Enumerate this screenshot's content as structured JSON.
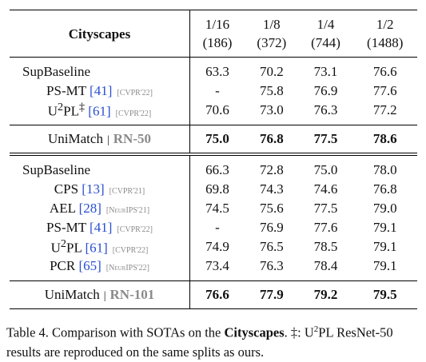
{
  "table": {
    "header": {
      "title": "Cityscapes",
      "columns": [
        {
          "split": "1/16",
          "count": "(186)"
        },
        {
          "split": "1/8",
          "count": "(372)"
        },
        {
          "split": "1/4",
          "count": "(744)"
        },
        {
          "split": "1/2",
          "count": "(1488)"
        }
      ]
    },
    "groups": [
      {
        "rows": [
          {
            "name": "SupBaseline",
            "values": [
              "63.3",
              "70.2",
              "73.1",
              "76.6"
            ]
          },
          {
            "name": "PS-MT",
            "ref": "[41]",
            "venue": "[CVPR'22]",
            "values": [
              "-",
              "75.8",
              "76.9",
              "77.6"
            ]
          },
          {
            "name": "U",
            "sup": "2",
            "name_after": "PL",
            "mark": "‡",
            "ref": "[61]",
            "venue": "[CVPR'22]",
            "values": [
              "70.6",
              "73.0",
              "76.3",
              "77.2"
            ]
          }
        ],
        "total": {
          "name": "UniMatch",
          "separator": "|",
          "backbone": "RN-50",
          "values": [
            "75.0",
            "76.8",
            "77.5",
            "78.6"
          ]
        }
      },
      {
        "rows": [
          {
            "name": "SupBaseline",
            "values": [
              "66.3",
              "72.8",
              "75.0",
              "78.0"
            ]
          },
          {
            "name": "CPS",
            "ref": "[13]",
            "venue": "[CVPR'21]",
            "values": [
              "69.8",
              "74.3",
              "74.6",
              "76.8"
            ]
          },
          {
            "name": "AEL",
            "ref": "[28]",
            "venue": "[NeurIPS'21]",
            "values": [
              "74.5",
              "75.6",
              "77.5",
              "79.0"
            ]
          },
          {
            "name": "PS-MT",
            "ref": "[41]",
            "venue": "[CVPR'22]",
            "values": [
              "-",
              "76.9",
              "77.6",
              "79.1"
            ]
          },
          {
            "name": "U",
            "sup": "2",
            "name_after": "PL",
            "ref": "[61]",
            "venue": "[CVPR'22]",
            "values": [
              "74.9",
              "76.5",
              "78.5",
              "79.1"
            ]
          },
          {
            "name": "PCR",
            "ref": "[65]",
            "venue": "[NeurIPS'22]",
            "values": [
              "73.4",
              "76.3",
              "78.4",
              "79.1"
            ]
          }
        ],
        "total": {
          "name": "UniMatch",
          "separator": "|",
          "backbone": "RN-101",
          "values": [
            "76.6",
            "77.9",
            "79.2",
            "79.5"
          ]
        }
      }
    ]
  },
  "caption": {
    "parts": [
      {
        "text": "Table 4. Comparison with SOTAs on the "
      },
      {
        "text": "Cityscapes",
        "bold": true
      },
      {
        "text": ". ‡: U"
      },
      {
        "text": "2",
        "sup": true
      },
      {
        "text": "PL ResNet-50 results are reproduced on the same splits as ours."
      }
    ]
  }
}
